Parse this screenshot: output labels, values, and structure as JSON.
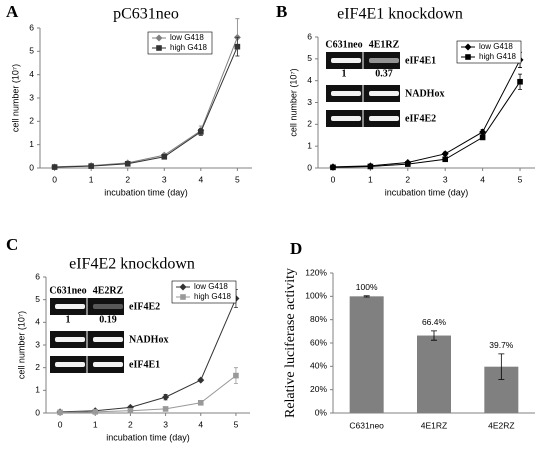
{
  "chart_data": [
    {
      "panel": "A",
      "type": "line",
      "title": "pC631neo",
      "x_label": "incubation time (day)",
      "y_label": "cell number (10⁷)",
      "x": [
        0,
        1,
        2,
        3,
        4,
        5
      ],
      "xlim": [
        -0.4,
        5.4
      ],
      "xticks": [
        0,
        1,
        2,
        3,
        4,
        5
      ],
      "ylim": [
        0,
        6
      ],
      "yticks": [
        0,
        1,
        2,
        3,
        4,
        5,
        6
      ],
      "legend": "upper center",
      "series": [
        {
          "name": "low G418",
          "color": "#808080",
          "marker": "diamond",
          "values": [
            0.05,
            0.1,
            0.22,
            0.55,
            1.6,
            5.6
          ],
          "errors": [
            0.02,
            0.03,
            0.05,
            0.08,
            0.2,
            0.8
          ]
        },
        {
          "name": "high G418",
          "color": "#333333",
          "marker": "square",
          "values": [
            0.04,
            0.08,
            0.18,
            0.48,
            1.55,
            5.2
          ],
          "errors": [
            0.02,
            0.03,
            0.04,
            0.06,
            0.15,
            0.4
          ]
        }
      ]
    },
    {
      "panel": "B",
      "type": "line",
      "title": "eIF4E1 knockdown",
      "x_label": "incubation time (day)",
      "y_label": "cell number (10⁷)",
      "x": [
        0,
        1,
        2,
        3,
        4,
        5
      ],
      "xlim": [
        -0.4,
        5.4
      ],
      "xticks": [
        0,
        1,
        2,
        3,
        4,
        5
      ],
      "ylim": [
        0,
        6
      ],
      "yticks": [
        0,
        1,
        2,
        3,
        4,
        5,
        6
      ],
      "legend": "upper right",
      "gel": {
        "lanes": [
          "C631neo",
          "4E1RZ"
        ],
        "ratios": [
          1,
          0.37
        ],
        "rows": [
          "eIF4E1",
          "NADHox",
          "eIF4E2"
        ]
      },
      "series": [
        {
          "name": "low G418",
          "color": "#000000",
          "marker": "diamond",
          "values": [
            0.05,
            0.1,
            0.25,
            0.65,
            1.65,
            4.95
          ],
          "errors": [
            0.02,
            0.03,
            0.05,
            0.08,
            0.12,
            0.35
          ]
        },
        {
          "name": "high G418",
          "color": "#000000",
          "marker": "square",
          "values": [
            0.03,
            0.07,
            0.18,
            0.4,
            1.4,
            3.95
          ],
          "errors": [
            0.01,
            0.02,
            0.04,
            0.05,
            0.1,
            0.35
          ]
        }
      ]
    },
    {
      "panel": "C",
      "type": "line",
      "title": "eIF4E2 knockdown",
      "x_label": "incubation time (day)",
      "y_label": "cell number (10⁷)",
      "x": [
        0,
        1,
        2,
        3,
        4,
        5
      ],
      "xlim": [
        -0.4,
        5.4
      ],
      "xticks": [
        0,
        1,
        2,
        3,
        4,
        5
      ],
      "ylim": [
        0,
        6
      ],
      "yticks": [
        0,
        1,
        2,
        3,
        4,
        5,
        6
      ],
      "legend": "upper right",
      "gel": {
        "lanes": [
          "C631neo",
          "4E2RZ"
        ],
        "ratios": [
          1,
          0.19
        ],
        "rows": [
          "eIF4E2",
          "NADHox",
          "eIF4E1"
        ]
      },
      "series": [
        {
          "name": "low G418",
          "color": "#333333",
          "marker": "diamond",
          "values": [
            0.05,
            0.1,
            0.25,
            0.7,
            1.45,
            5.05
          ],
          "errors": [
            0.02,
            0.03,
            0.05,
            0.12,
            0.05,
            0.4
          ]
        },
        {
          "name": "high G418",
          "color": "#999999",
          "marker": "square",
          "values": [
            0.03,
            0.05,
            0.1,
            0.18,
            0.45,
            1.65
          ],
          "errors": [
            0.01,
            0.02,
            0.03,
            0.03,
            0.05,
            0.35
          ]
        }
      ]
    },
    {
      "panel": "D",
      "type": "bar",
      "y_label": "Relative luciferase activity",
      "categories": [
        "C631neo",
        "4E1RZ",
        "4E2RZ"
      ],
      "values": [
        100,
        66.4,
        39.7
      ],
      "value_labels": [
        "100%",
        "66.4%",
        "39.7%"
      ],
      "errors": [
        0.5,
        4,
        11
      ],
      "color": "#808080",
      "ylim": [
        0,
        120
      ],
      "yticks": [
        {
          "value": 0,
          "label": "0%"
        },
        {
          "value": 20,
          "label": "20%"
        },
        {
          "value": 40,
          "label": "40%"
        },
        {
          "value": 60,
          "label": "60%"
        },
        {
          "value": 80,
          "label": "80%"
        },
        {
          "value": 100,
          "label": "100%"
        },
        {
          "value": 120,
          "label": "120%"
        }
      ]
    }
  ]
}
